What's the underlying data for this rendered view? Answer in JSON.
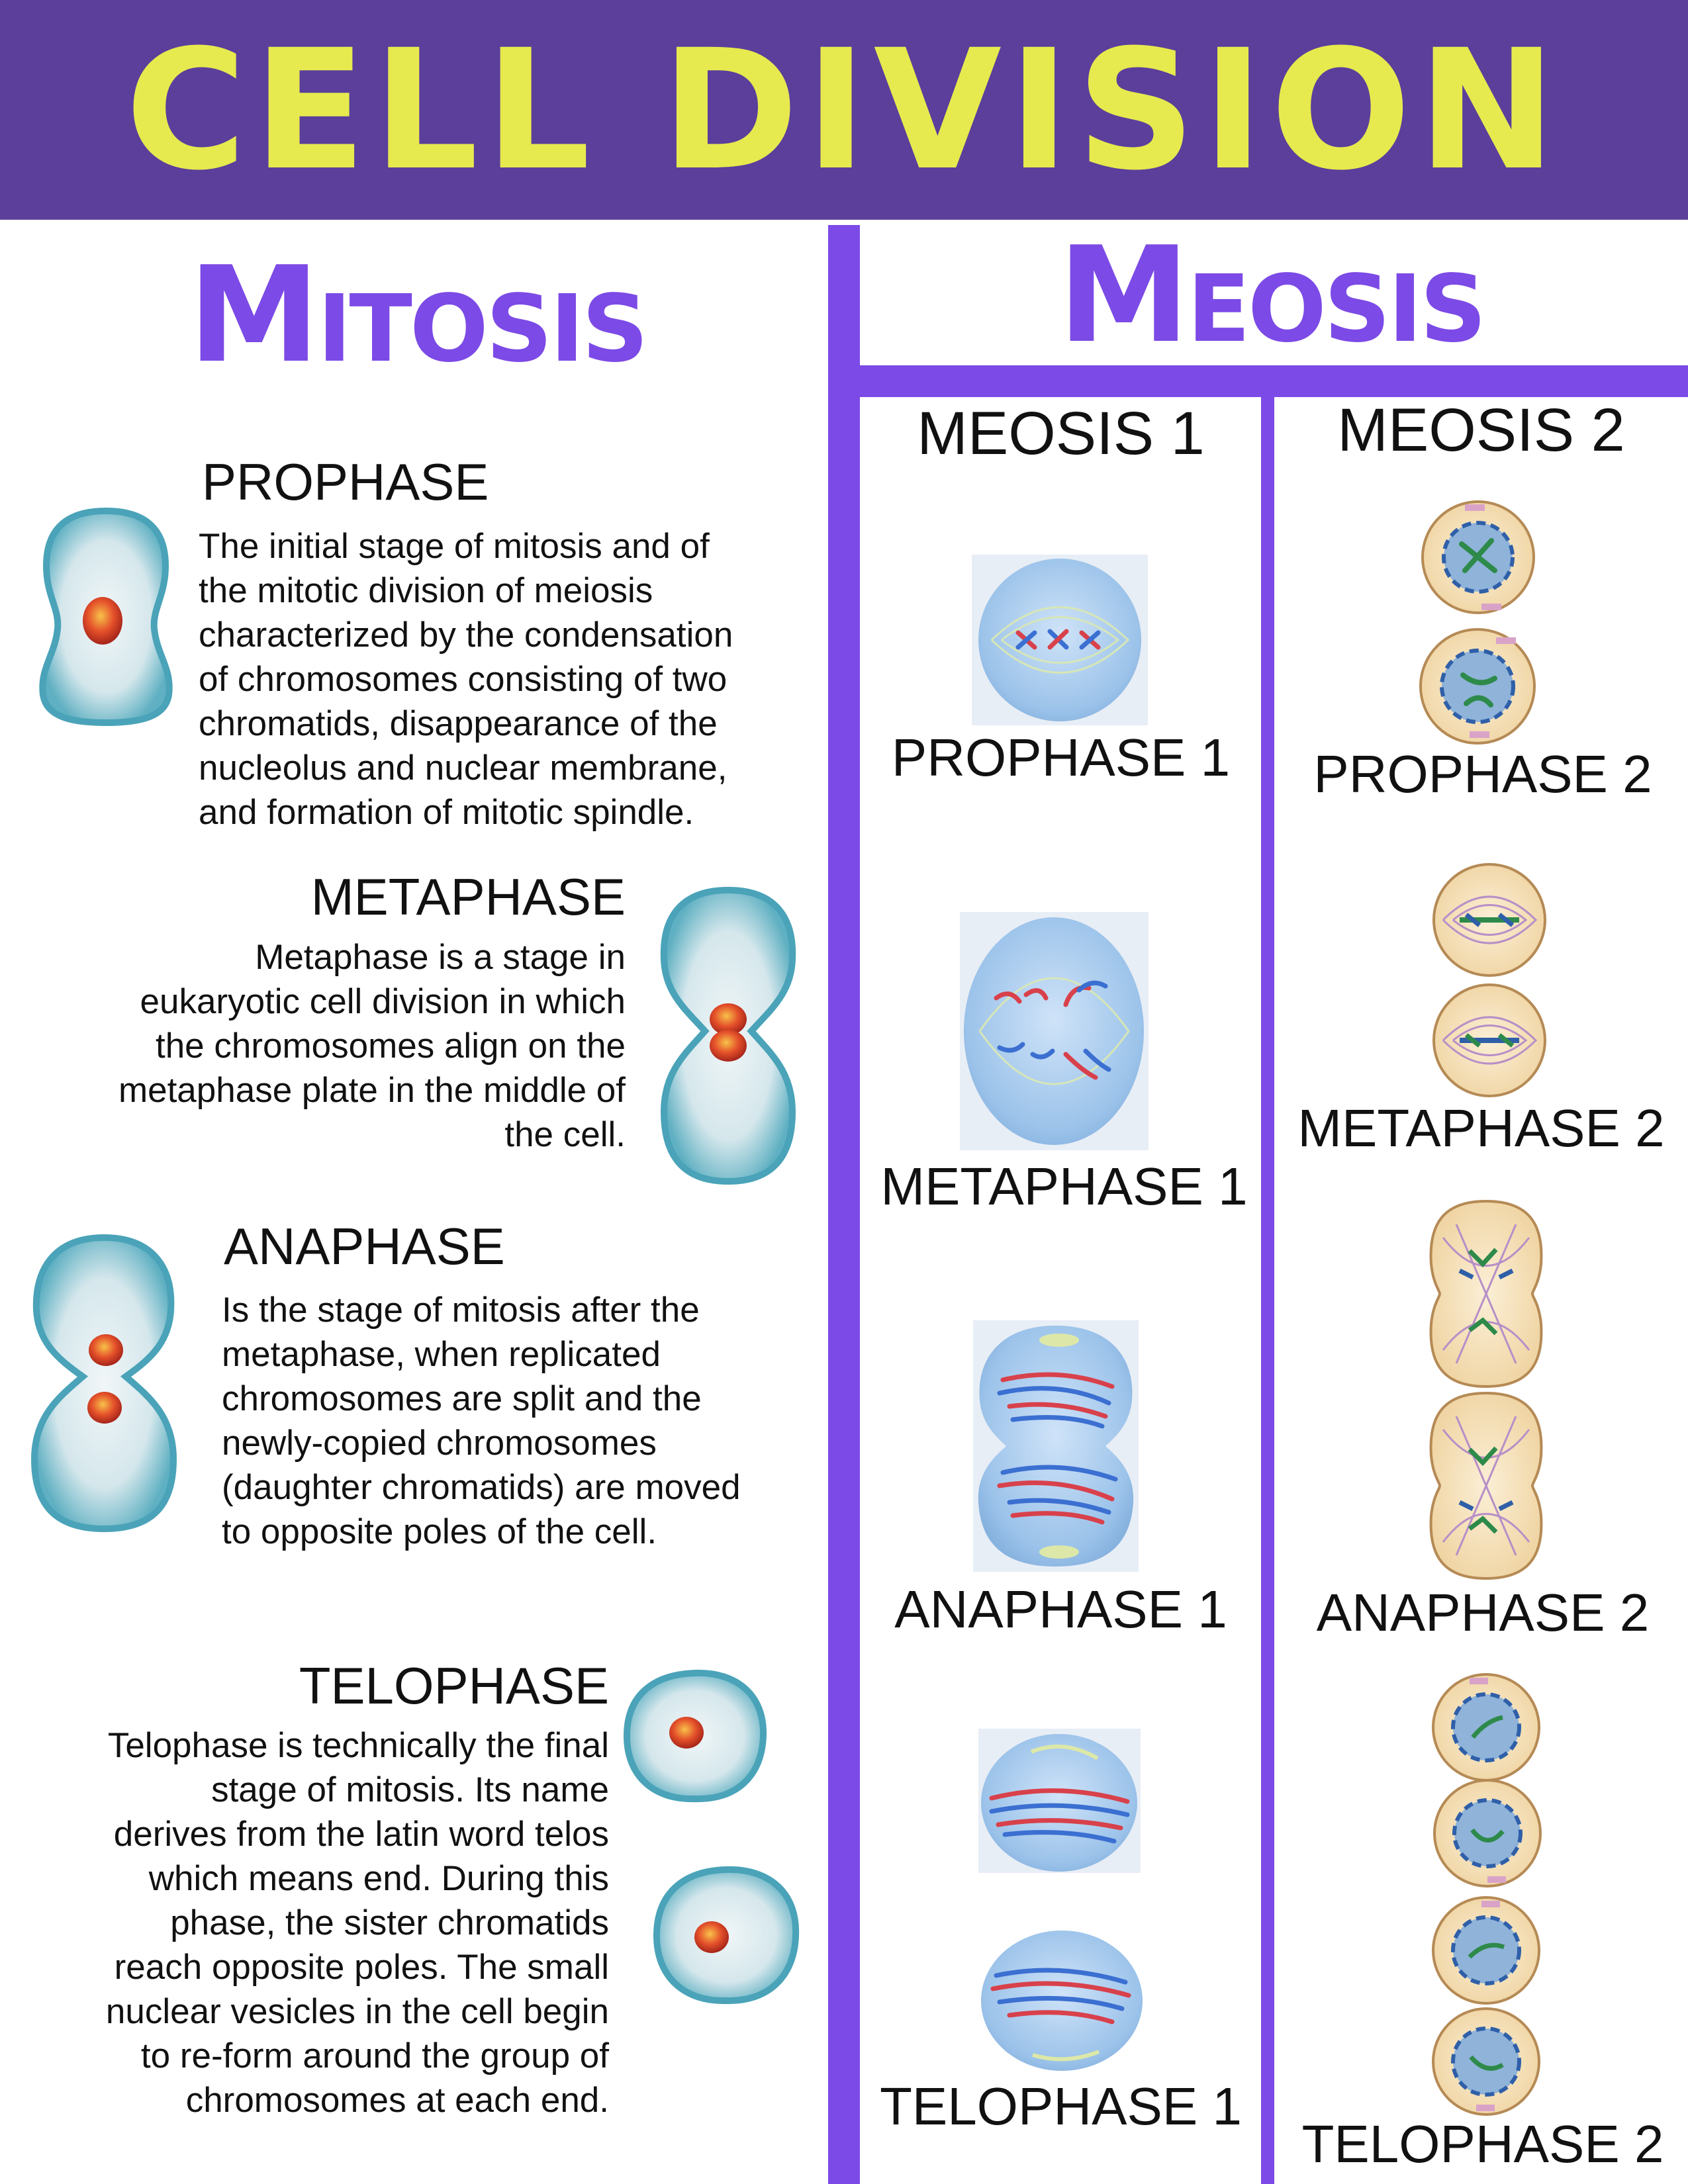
{
  "title": "CELL DIVISION",
  "colors": {
    "banner": "#5b3f9b",
    "title": "#e6ea4e",
    "accent": "#7c4ae6",
    "cell_body": "#cfe4f5",
    "cell_rim": "#4aa3b8"
  },
  "mitosis": {
    "title": "Mitosis",
    "stages": [
      {
        "heading": "PROPHASE",
        "lines": [
          "The initial stage of mitosis and of",
          "the mitotic division of meiosis",
          "characterized by the condensation",
          "of chromosomes consisting of two",
          "chromatids, disappearance of the",
          "nucleolus and nuclear membrane,",
          "and formation of mitotic spindle."
        ]
      },
      {
        "heading": "METAPHASE",
        "lines": [
          "Metaphase is a stage in",
          "eukaryotic cell division in which",
          "the chromosomes align on the",
          "metaphase plate in the middle of",
          "the cell."
        ]
      },
      {
        "heading": "ANAPHASE",
        "lines": [
          "Is the stage of mitosis after the",
          "metaphase, when replicated",
          "chromosomes are split and the",
          "newly-copied chromosomes",
          "(daughter chromatids) are moved",
          "to opposite poles of the cell."
        ]
      },
      {
        "heading": "TELOPHASE",
        "lines": [
          "Telophase is technically the final",
          "stage of mitosis. Its name",
          "derives from the latin word telos",
          "which means end. During this",
          "phase, the sister chromatids",
          "reach opposite poles. The small",
          "nuclear vesicles in the cell begin",
          "to re-form around the group of",
          "chromosomes at each end."
        ]
      }
    ]
  },
  "meiosis": {
    "title": "Meosis",
    "col1": {
      "heading": "MEOSIS 1",
      "stages": [
        "PROPHASE 1",
        "METAPHASE 1",
        "ANAPHASE 1",
        "TELOPHASE 1"
      ]
    },
    "col2": {
      "heading": "MEOSIS 2",
      "stages": [
        "PROPHASE 2",
        "METAPHASE 2",
        "ANAPHASE 2",
        "TELOPHASE 2"
      ]
    }
  }
}
